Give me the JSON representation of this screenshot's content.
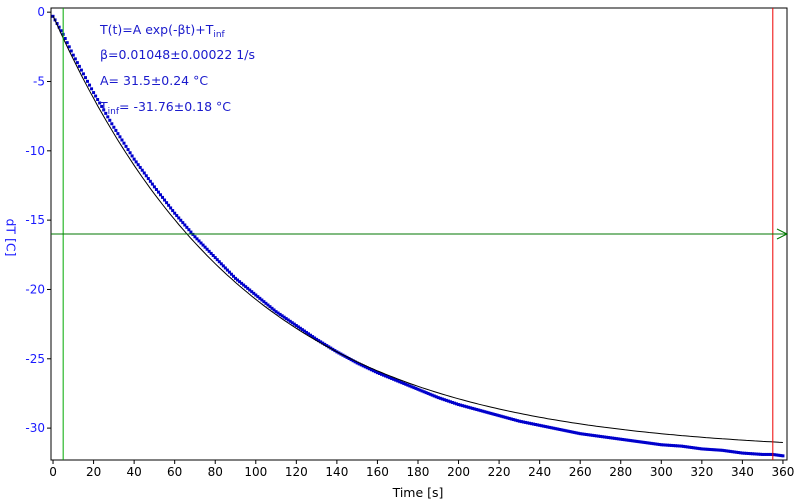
{
  "chart_data": {
    "type": "scatter",
    "xlabel": "Time [s]",
    "ylabel": "dT [C]",
    "xlim": [
      -1,
      362
    ],
    "ylim": [
      -32.3,
      0.3
    ],
    "xticks": [
      0,
      20,
      40,
      60,
      80,
      100,
      120,
      140,
      160,
      180,
      200,
      220,
      240,
      260,
      280,
      300,
      320,
      340,
      360
    ],
    "yticks": [
      0,
      -5,
      -10,
      -15,
      -20,
      -25,
      -30
    ],
    "fit": {
      "A": 31.5,
      "beta": 0.01048,
      "T_inf": -31.76
    },
    "series": [
      {
        "values_note": "",
        "x": [
          0,
          5,
          10,
          20,
          30,
          40,
          50,
          60,
          70,
          80,
          90,
          100,
          110,
          120,
          130,
          140,
          150,
          160,
          170,
          180,
          190,
          200,
          210,
          220,
          230,
          240,
          250,
          260,
          270,
          280,
          290,
          300,
          310,
          320,
          330,
          340,
          350,
          355,
          360
        ],
        "y": [
          -0.3,
          -1.6,
          -3.1,
          -5.8,
          -8.3,
          -10.6,
          -12.6,
          -14.5,
          -16.2,
          -17.7,
          -19.2,
          -20.4,
          -21.6,
          -22.6,
          -23.6,
          -24.5,
          -25.3,
          -26.0,
          -26.6,
          -27.2,
          -27.8,
          -28.3,
          -28.7,
          -29.1,
          -29.5,
          -29.8,
          -30.1,
          -30.4,
          -30.6,
          -30.8,
          -31.0,
          -31.2,
          -31.3,
          -31.5,
          -31.6,
          -31.8,
          -31.9,
          -31.9,
          -32.0
        ]
      }
    ],
    "markers": {
      "vertical_green_x": 5,
      "vertical_red_x": 355,
      "horizontal_green_y": -16.0
    },
    "annotations": {
      "line1_main": "T(t)=A exp(-βt)+T",
      "line1_sub": "inf",
      "line2": "β=0.01048±0.00022 1/s",
      "line3": "A= 31.5±0.24 °C",
      "line4_pre": "T",
      "line4_sub": "inf",
      "line4_post": "= -31.76±0.18 °C"
    },
    "colors": {
      "data": "#0000cc",
      "fit": "#000000",
      "ylabels": "#1a1aff",
      "green": "#00aa00",
      "red": "#ee0000",
      "hline": "#007700"
    }
  }
}
